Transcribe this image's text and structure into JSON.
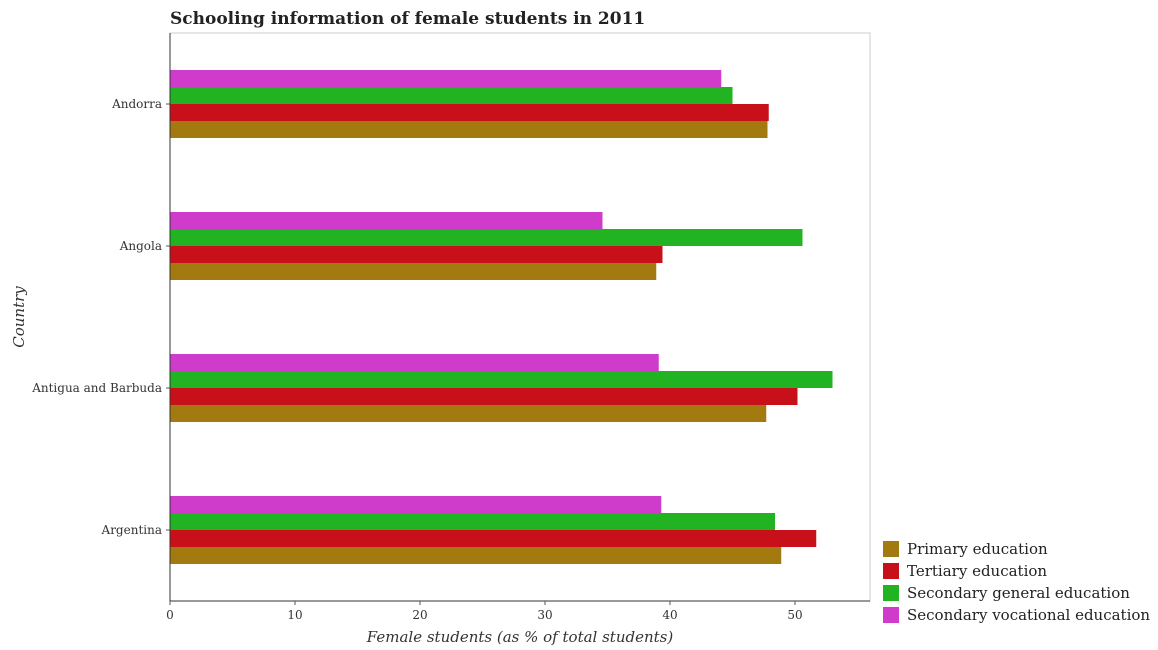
{
  "chart_data": {
    "type": "bar",
    "orientation": "horizontal",
    "title": "Schooling information of female students in 2011",
    "xlabel": "Female students (as % of total students)",
    "ylabel": "Country",
    "xlim": [
      0,
      56
    ],
    "xticks": [
      0,
      10,
      20,
      30,
      40,
      50
    ],
    "categories": [
      "Andorra",
      "Angola",
      "Antigua and Barbuda",
      "Argentina"
    ],
    "series": [
      {
        "name": "Primary education",
        "color": "#a37a10",
        "values": [
          47.8,
          38.9,
          47.7,
          48.9
        ]
      },
      {
        "name": "Tertiary education",
        "color": "#c8101a",
        "values": [
          47.9,
          39.4,
          50.2,
          51.7
        ]
      },
      {
        "name": "Secondary general education",
        "color": "#22b322",
        "values": [
          45.0,
          50.6,
          53.0,
          48.4
        ]
      },
      {
        "name": "Secondary vocational education",
        "color": "#cf3ccb",
        "values": [
          44.1,
          34.6,
          39.1,
          39.3
        ]
      }
    ],
    "legend_position": "bottom-right",
    "grid": false
  }
}
